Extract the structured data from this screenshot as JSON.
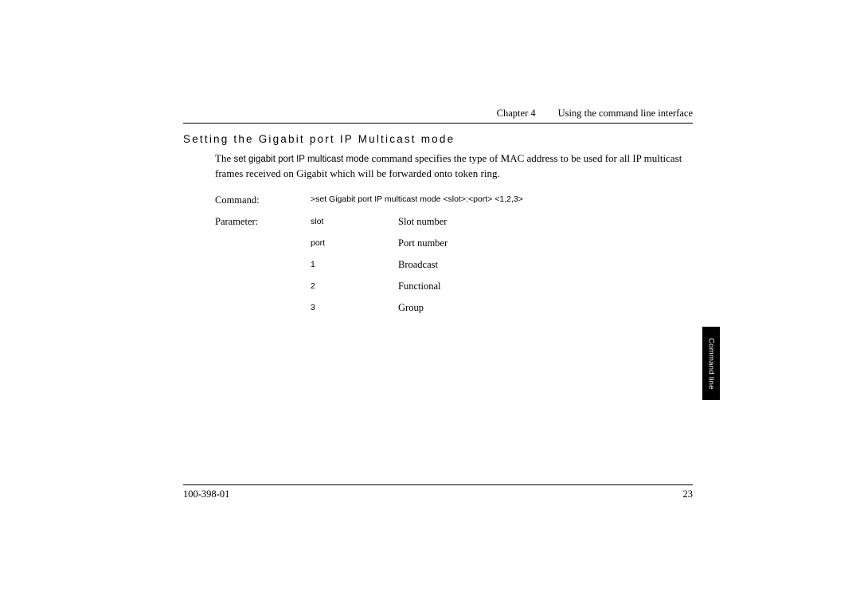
{
  "header": {
    "chapter": "Chapter 4",
    "title": "Using the command line interface"
  },
  "section": {
    "title": "Setting the Gigabit port IP Multicast mode"
  },
  "body": {
    "prefix": "The ",
    "cmd_name": "set gigabit port IP multicast mode",
    "rest": " command specifies the type of MAC address to be used for all IP multicast frames received on Gigabit which will be forwarded onto token ring."
  },
  "command": {
    "label": "Command:",
    "syntax": ">set Gigabit port IP multicast mode <slot>:<port> <1,2,3>"
  },
  "parameter": {
    "label": "Parameter:",
    "rows": [
      {
        "code": "slot",
        "desc": "Slot number"
      },
      {
        "code": "port",
        "desc": "Port number"
      },
      {
        "code": "1",
        "desc": "Broadcast"
      },
      {
        "code": "2",
        "desc": "Functional"
      },
      {
        "code": "3",
        "desc": "Group"
      }
    ]
  },
  "footer": {
    "docnum": "100-398-01",
    "pagenum": "23"
  },
  "sidetab": "Command line"
}
